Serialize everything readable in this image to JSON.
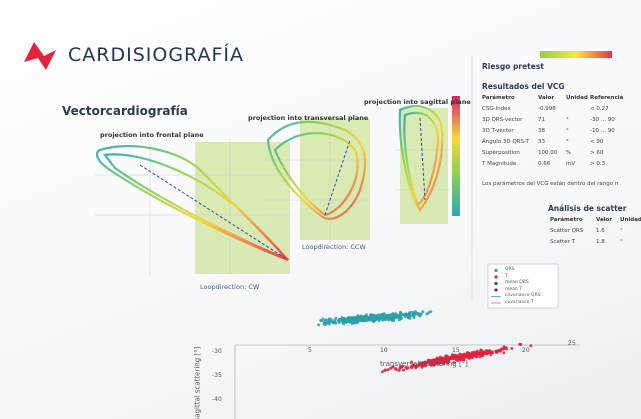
{
  "header": {
    "brand": "CARDISIOGRAFÍA"
  },
  "vcg": {
    "title": "Vectorcardiografía",
    "plots": [
      {
        "title": "projection into frontal plane",
        "loop": "Loopdirection: CW"
      },
      {
        "title": "projection into transversal plane",
        "loop": "Loopdirection: CCW"
      },
      {
        "title": "projection into sagittal plane"
      }
    ]
  },
  "scatter": {
    "x_label": "transversal scattering [°]",
    "y_label": "sagittal scattering [°]",
    "xticks": [
      "5",
      "10",
      "15",
      "20",
      "25"
    ],
    "yticks": [
      "-30",
      "-35",
      "-40"
    ],
    "legend": [
      "QRS",
      "T",
      "mean QRS",
      "mean T",
      "covariance QRS",
      "covariance T"
    ]
  },
  "panel": {
    "risk": "Riesgo pretest",
    "results_title": "Resultados del VCG",
    "results_header": [
      "Parámetro",
      "Valor",
      "Unidad",
      "Referencia"
    ],
    "results_rows": [
      [
        "CSG-Index",
        "-0.998",
        "",
        "< 0.27"
      ],
      [
        "3D QRS-vector",
        "71",
        "°",
        "-30 ... 90"
      ],
      [
        "3D T-vector",
        "38",
        "°",
        "-10 ... 90"
      ],
      [
        "Ángulo 3D QRS-T",
        "33",
        "°",
        "< 90"
      ],
      [
        "Superposition",
        "100.00",
        "%",
        "> 60"
      ],
      [
        "T Magnitude",
        "0.66",
        "mV",
        "> 0.3"
      ]
    ],
    "note": "Los parámetros del VCG están dentro del rango n",
    "scatter_title": "Análisis de scatter",
    "scatter_header": [
      "Parámetro",
      "Valor",
      "Unidad"
    ],
    "scatter_rows": [
      [
        "Scatter QRS",
        "1.6",
        "°"
      ],
      [
        "Scatter T",
        "1.8",
        "°"
      ]
    ]
  }
}
